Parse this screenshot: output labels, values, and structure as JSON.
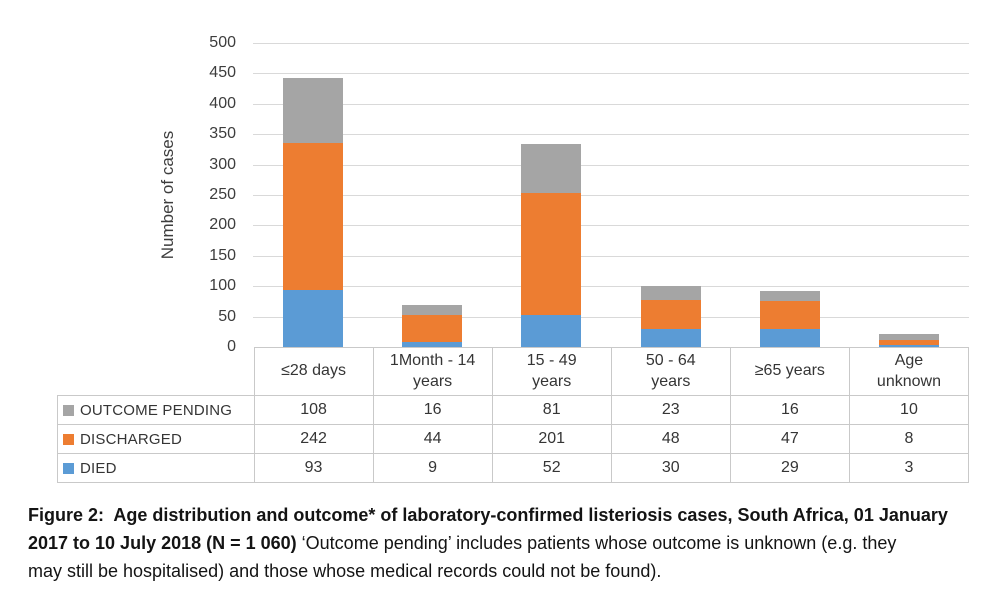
{
  "chart_data": {
    "type": "bar",
    "stacked": true,
    "title": "",
    "xlabel": "",
    "ylabel": "Number of cases",
    "ylim": [
      0,
      500
    ],
    "ytick_step": 50,
    "grid": true,
    "legend_position": "table-left",
    "categories": [
      "≤28 days",
      "1Month - 14\nyears",
      "15 - 49\nyears",
      "50 - 64\nyears",
      "≥65 years",
      "Age\nunknown"
    ],
    "series": [
      {
        "name": "DIED",
        "color": "#5B9BD5",
        "values": [
          93,
          9,
          52,
          30,
          29,
          3
        ]
      },
      {
        "name": "DISCHARGED",
        "color": "#ED7D31",
        "values": [
          242,
          44,
          201,
          48,
          47,
          8
        ]
      },
      {
        "name": "OUTCOME PENDING",
        "color": "#A5A5A5",
        "values": [
          108,
          16,
          81,
          23,
          16,
          10
        ]
      }
    ],
    "table_display_order": [
      "OUTCOME PENDING",
      "DISCHARGED",
      "DIED"
    ]
  },
  "caption": {
    "line1_bold": "Figure 2:  Age distribution and outcome* of laboratory-confirmed listeriosis cases, South Africa, 01 January",
    "line2_bold": "2017 to 10 July 2018 (N = 1 060)",
    "line2_regular": " ‘Outcome pending’ includes patients whose outcome is unknown (e.g. they",
    "line3_regular": "may still be hospitalised) and those whose medical records could not be found)."
  },
  "colors": {
    "gridline": "#d9d9d9",
    "table_border": "#c9c9c9",
    "axis_text": "#3d3d3d"
  }
}
